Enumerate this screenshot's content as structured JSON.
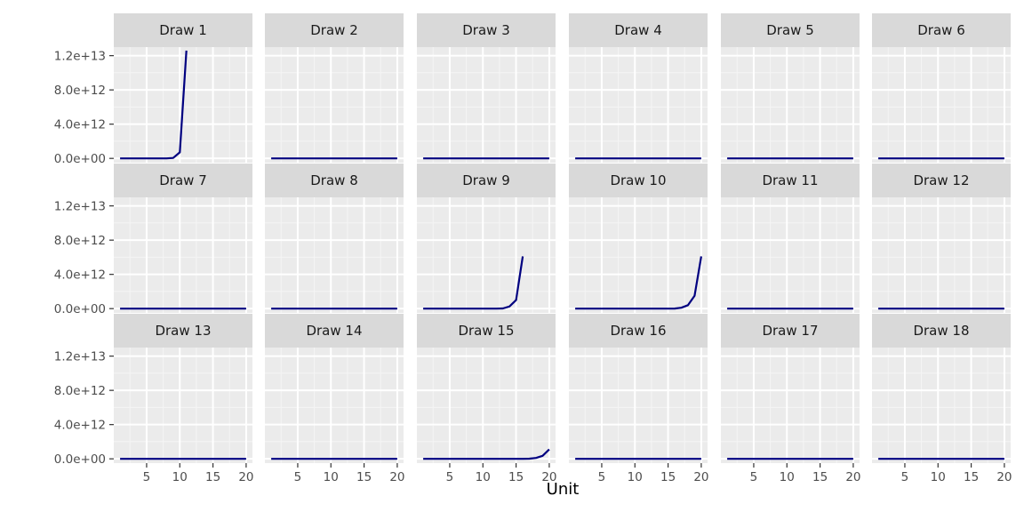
{
  "chart_data": {
    "type": "line",
    "xlabel": "Unit",
    "ylabel": "",
    "xlim": [
      0.05,
      20.95
    ],
    "ylim": [
      -500000000000,
      13000000000000
    ],
    "x_ticks": [
      5,
      10,
      15,
      20
    ],
    "x_tick_labels": [
      "5",
      "10",
      "15",
      "20"
    ],
    "y_ticks": [
      0,
      4000000000000,
      8000000000000,
      12000000000000
    ],
    "y_tick_labels": [
      "0.0e+00",
      "4.0e+12",
      "8.0e+12",
      "1.2e+13"
    ],
    "grid": true,
    "layout": {
      "rows": 3,
      "cols": 6
    },
    "colors": {
      "line": "#000080",
      "panel": "#ebebeb",
      "strip": "#d9d9d9",
      "grid_major": "#ffffff",
      "grid_minor": "#f5f5f5"
    },
    "panels": [
      {
        "title": "Draw 1",
        "x": [
          1,
          2,
          3,
          4,
          5,
          6,
          7,
          8,
          9,
          10,
          11
        ],
        "y": [
          0,
          0,
          0,
          0,
          0,
          0,
          0,
          0,
          50000000000,
          700000000000,
          12600000000000
        ]
      },
      {
        "title": "Draw 2",
        "x": [
          1,
          20
        ],
        "y": [
          0,
          0
        ]
      },
      {
        "title": "Draw 3",
        "x": [
          1,
          20
        ],
        "y": [
          0,
          0
        ]
      },
      {
        "title": "Draw 4",
        "x": [
          1,
          20
        ],
        "y": [
          0,
          0
        ]
      },
      {
        "title": "Draw 5",
        "x": [
          1,
          20
        ],
        "y": [
          0,
          0
        ]
      },
      {
        "title": "Draw 6",
        "x": [
          1,
          20
        ],
        "y": [
          0,
          0
        ]
      },
      {
        "title": "Draw 7",
        "x": [
          1,
          20
        ],
        "y": [
          0,
          0
        ]
      },
      {
        "title": "Draw 8",
        "x": [
          1,
          20
        ],
        "y": [
          0,
          0
        ]
      },
      {
        "title": "Draw 9",
        "x": [
          1,
          2,
          3,
          4,
          5,
          6,
          7,
          8,
          9,
          10,
          11,
          12,
          13,
          14,
          15,
          16
        ],
        "y": [
          0,
          0,
          0,
          0,
          0,
          0,
          0,
          0,
          0,
          0,
          0,
          0,
          20000000000,
          250000000000,
          1000000000000,
          6100000000000
        ]
      },
      {
        "title": "Draw 10",
        "x": [
          1,
          2,
          3,
          4,
          5,
          6,
          7,
          8,
          9,
          10,
          11,
          12,
          13,
          14,
          15,
          16,
          17,
          18,
          19,
          20
        ],
        "y": [
          0,
          0,
          0,
          0,
          0,
          0,
          0,
          0,
          0,
          0,
          0,
          0,
          0,
          0,
          0,
          10000000000,
          100000000000,
          400000000000,
          1500000000000,
          6100000000000
        ]
      },
      {
        "title": "Draw 11",
        "x": [
          1,
          20
        ],
        "y": [
          0,
          0
        ]
      },
      {
        "title": "Draw 12",
        "x": [
          1,
          20
        ],
        "y": [
          0,
          0
        ]
      },
      {
        "title": "Draw 13",
        "x": [
          1,
          20
        ],
        "y": [
          0,
          0
        ]
      },
      {
        "title": "Draw 14",
        "x": [
          1,
          20
        ],
        "y": [
          0,
          0
        ]
      },
      {
        "title": "Draw 15",
        "x": [
          1,
          2,
          3,
          4,
          5,
          6,
          7,
          8,
          9,
          10,
          11,
          12,
          13,
          14,
          15,
          16,
          17,
          18,
          19,
          20
        ],
        "y": [
          0,
          0,
          0,
          0,
          0,
          0,
          0,
          0,
          0,
          0,
          0,
          0,
          0,
          0,
          0,
          0,
          20000000000,
          100000000000,
          350000000000,
          1100000000000
        ]
      },
      {
        "title": "Draw 16",
        "x": [
          1,
          20
        ],
        "y": [
          0,
          0
        ]
      },
      {
        "title": "Draw 17",
        "x": [
          1,
          20
        ],
        "y": [
          0,
          0
        ]
      },
      {
        "title": "Draw 18",
        "x": [
          1,
          20
        ],
        "y": [
          0,
          0
        ]
      }
    ]
  }
}
